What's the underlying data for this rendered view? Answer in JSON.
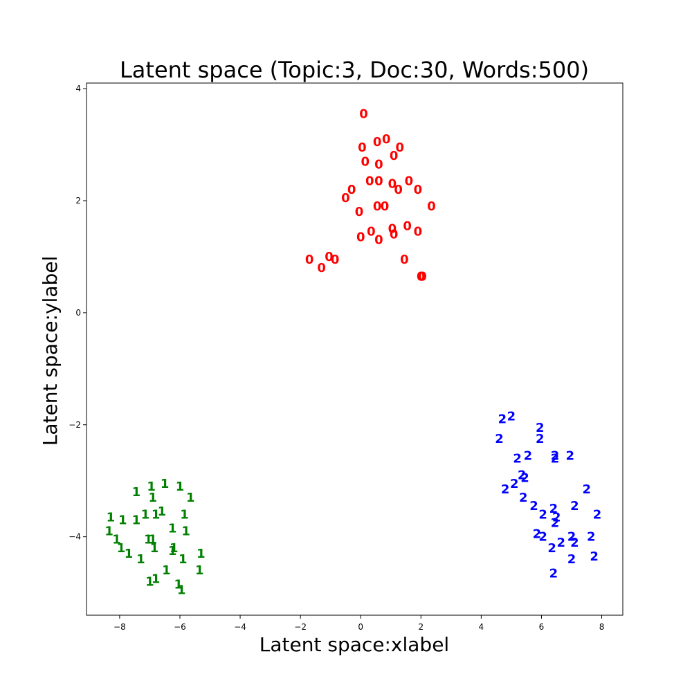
{
  "chart_data": {
    "type": "scatter",
    "title": "Latent space (Topic:3, Doc:30, Words:500)",
    "xlabel": "Latent space:xlabel",
    "ylabel": "Latent space:ylabel",
    "xlim": [
      -9.1,
      8.7
    ],
    "ylim": [
      -5.4,
      4.1
    ],
    "xticks": [
      -8,
      -6,
      -4,
      -2,
      0,
      2,
      4,
      6,
      8
    ],
    "yticks": [
      -4,
      -2,
      0,
      2,
      4
    ],
    "grid": false,
    "series": [
      {
        "label": "0",
        "color": "#ff0000",
        "points": [
          [
            0.1,
            3.55
          ],
          [
            0.55,
            3.05
          ],
          [
            0.85,
            3.1
          ],
          [
            0.05,
            2.95
          ],
          [
            1.3,
            2.95
          ],
          [
            1.1,
            2.8
          ],
          [
            0.15,
            2.7
          ],
          [
            0.6,
            2.65
          ],
          [
            0.3,
            2.35
          ],
          [
            0.6,
            2.35
          ],
          [
            1.05,
            2.3
          ],
          [
            1.6,
            2.35
          ],
          [
            1.25,
            2.2
          ],
          [
            1.9,
            2.2
          ],
          [
            -0.3,
            2.2
          ],
          [
            -0.5,
            2.05
          ],
          [
            2.35,
            1.9
          ],
          [
            0.55,
            1.9
          ],
          [
            0.8,
            1.9
          ],
          [
            -0.05,
            1.8
          ],
          [
            1.55,
            1.55
          ],
          [
            1.05,
            1.5
          ],
          [
            1.9,
            1.45
          ],
          [
            0.35,
            1.45
          ],
          [
            1.1,
            1.4
          ],
          [
            0.0,
            1.35
          ],
          [
            0.6,
            1.3
          ],
          [
            -1.7,
            0.95
          ],
          [
            -1.05,
            1.0
          ],
          [
            -0.85,
            0.95
          ],
          [
            1.45,
            0.95
          ],
          [
            -1.3,
            0.8
          ],
          [
            2.0,
            0.65
          ],
          [
            2.05,
            0.65
          ]
        ]
      },
      {
        "label": "1",
        "color": "#008000",
        "points": [
          [
            -6.5,
            -3.05
          ],
          [
            -6.95,
            -3.1
          ],
          [
            -6.0,
            -3.1
          ],
          [
            -7.45,
            -3.2
          ],
          [
            -6.9,
            -3.3
          ],
          [
            -5.65,
            -3.3
          ],
          [
            -6.6,
            -3.55
          ],
          [
            -7.15,
            -3.6
          ],
          [
            -6.8,
            -3.6
          ],
          [
            -5.85,
            -3.6
          ],
          [
            -8.3,
            -3.65
          ],
          [
            -7.9,
            -3.7
          ],
          [
            -7.45,
            -3.7
          ],
          [
            -6.25,
            -3.85
          ],
          [
            -8.35,
            -3.9
          ],
          [
            -5.8,
            -3.9
          ],
          [
            -6.9,
            -4.05
          ],
          [
            -7.05,
            -4.05
          ],
          [
            -8.1,
            -4.05
          ],
          [
            -6.85,
            -4.2
          ],
          [
            -6.2,
            -4.2
          ],
          [
            -6.25,
            -4.25
          ],
          [
            -7.95,
            -4.2
          ],
          [
            -5.3,
            -4.3
          ],
          [
            -7.7,
            -4.3
          ],
          [
            -5.9,
            -4.4
          ],
          [
            -7.3,
            -4.4
          ],
          [
            -6.45,
            -4.6
          ],
          [
            -5.35,
            -4.6
          ],
          [
            -6.8,
            -4.75
          ],
          [
            -7.0,
            -4.8
          ],
          [
            -6.05,
            -4.85
          ],
          [
            -5.95,
            -4.95
          ]
        ]
      },
      {
        "label": "2",
        "color": "#0000ff",
        "points": [
          [
            5.0,
            -1.85
          ],
          [
            4.7,
            -1.9
          ],
          [
            5.95,
            -2.05
          ],
          [
            4.6,
            -2.25
          ],
          [
            5.95,
            -2.25
          ],
          [
            6.45,
            -2.55
          ],
          [
            5.55,
            -2.55
          ],
          [
            6.95,
            -2.55
          ],
          [
            6.45,
            -2.6
          ],
          [
            5.2,
            -2.6
          ],
          [
            5.35,
            -2.9
          ],
          [
            5.45,
            -2.95
          ],
          [
            5.1,
            -3.05
          ],
          [
            7.5,
            -3.15
          ],
          [
            4.8,
            -3.15
          ],
          [
            5.4,
            -3.3
          ],
          [
            7.1,
            -3.45
          ],
          [
            5.75,
            -3.45
          ],
          [
            6.4,
            -3.5
          ],
          [
            7.85,
            -3.6
          ],
          [
            6.05,
            -3.6
          ],
          [
            6.5,
            -3.65
          ],
          [
            6.45,
            -3.75
          ],
          [
            5.85,
            -3.95
          ],
          [
            6.05,
            -4.0
          ],
          [
            7.65,
            -4.0
          ],
          [
            7.0,
            -4.0
          ],
          [
            7.1,
            -4.1
          ],
          [
            6.65,
            -4.1
          ],
          [
            6.35,
            -4.2
          ],
          [
            7.75,
            -4.35
          ],
          [
            7.0,
            -4.4
          ],
          [
            6.4,
            -4.65
          ]
        ]
      }
    ]
  }
}
